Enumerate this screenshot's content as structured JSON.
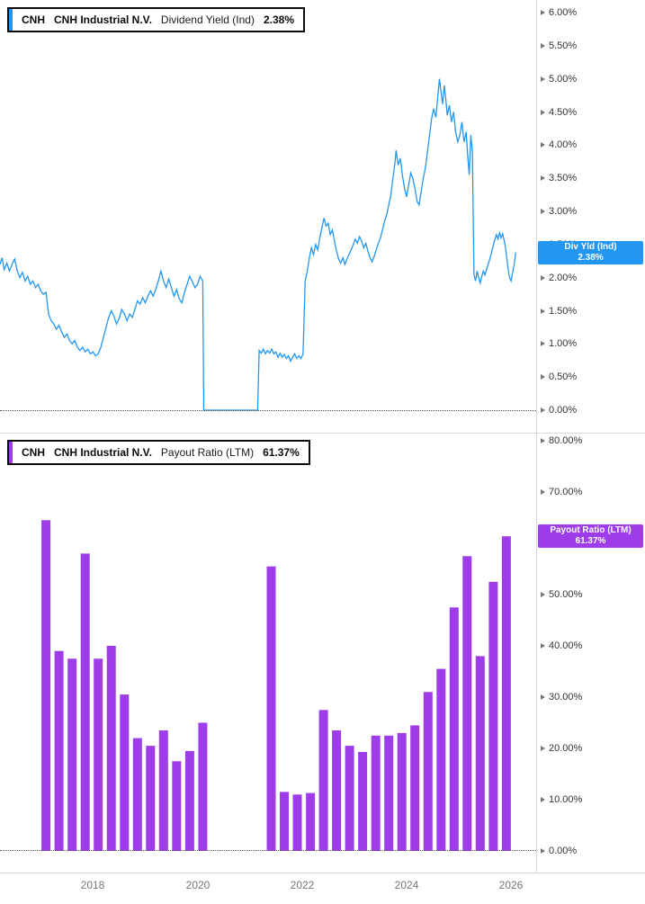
{
  "header_top": {
    "ticker": "CNH",
    "company": "CNH Industrial N.V.",
    "metric": "Dividend Yield (Ind)",
    "value": "2.38%",
    "accent": "#2196f3"
  },
  "header_bottom": {
    "ticker": "CNH",
    "company": "CNH Industrial N.V.",
    "metric": "Payout Ratio (LTM)",
    "value": "61.37%",
    "accent": "#9d3ce8"
  },
  "badge_top": {
    "line1": "Div Yld (Ind)",
    "line2": "2.38%",
    "color": "#2196f3"
  },
  "badge_bottom": {
    "line1": "Payout Ratio (LTM)",
    "line2": "61.37%",
    "color": "#9d3ce8"
  },
  "chart_data": [
    {
      "type": "line",
      "title": "CNH Industrial N.V. Dividend Yield (Ind)",
      "xlabel": "",
      "ylabel": "",
      "ylim": [
        0,
        6
      ],
      "x_range": [
        2016.22,
        2026.48
      ],
      "x_ticks": [
        "2018",
        "2020",
        "2022",
        "2024",
        "2026"
      ],
      "x_tick_values": [
        2018,
        2020,
        2022,
        2024,
        2026
      ],
      "grid": false,
      "current_value": 2.38,
      "yticks": [
        {
          "v": 6,
          "label": "6.00%"
        },
        {
          "v": 5.5,
          "label": "5.50%"
        },
        {
          "v": 5,
          "label": "5.00%"
        },
        {
          "v": 4.5,
          "label": "4.50%"
        },
        {
          "v": 4,
          "label": "4.00%"
        },
        {
          "v": 3.5,
          "label": "3.50%"
        },
        {
          "v": 3,
          "label": "3.00%"
        },
        {
          "v": 2.5,
          "label": "2.50%"
        },
        {
          "v": 2,
          "label": "2.00%"
        },
        {
          "v": 1.5,
          "label": "1.50%"
        },
        {
          "v": 1,
          "label": "1.00%"
        },
        {
          "v": 0.5,
          "label": "0.50%"
        },
        {
          "v": 0,
          "label": "0.00%"
        }
      ],
      "series": [
        {
          "name": "Div Yld (Ind)",
          "color": "#2196f3",
          "points": [
            [
              2016.22,
              2.2
            ],
            [
              2016.26,
              2.3
            ],
            [
              2016.3,
              2.12
            ],
            [
              2016.35,
              2.22
            ],
            [
              2016.4,
              2.1
            ],
            [
              2016.45,
              2.2
            ],
            [
              2016.5,
              2.28
            ],
            [
              2016.55,
              2.1
            ],
            [
              2016.6,
              2.0
            ],
            [
              2016.65,
              2.08
            ],
            [
              2016.7,
              1.95
            ],
            [
              2016.75,
              2.02
            ],
            [
              2016.8,
              1.9
            ],
            [
              2016.85,
              1.95
            ],
            [
              2016.9,
              1.85
            ],
            [
              2016.95,
              1.9
            ],
            [
              2017.0,
              1.8
            ],
            [
              2017.05,
              1.75
            ],
            [
              2017.1,
              1.78
            ],
            [
              2017.15,
              1.45
            ],
            [
              2017.2,
              1.35
            ],
            [
              2017.25,
              1.3
            ],
            [
              2017.3,
              1.22
            ],
            [
              2017.35,
              1.28
            ],
            [
              2017.4,
              1.18
            ],
            [
              2017.45,
              1.1
            ],
            [
              2017.5,
              1.15
            ],
            [
              2017.55,
              1.05
            ],
            [
              2017.6,
              1.0
            ],
            [
              2017.65,
              1.05
            ],
            [
              2017.7,
              0.95
            ],
            [
              2017.75,
              0.9
            ],
            [
              2017.8,
              0.95
            ],
            [
              2017.85,
              0.88
            ],
            [
              2017.9,
              0.92
            ],
            [
              2017.95,
              0.85
            ],
            [
              2018.0,
              0.88
            ],
            [
              2018.05,
              0.82
            ],
            [
              2018.1,
              0.85
            ],
            [
              2018.15,
              0.95
            ],
            [
              2018.2,
              1.1
            ],
            [
              2018.25,
              1.25
            ],
            [
              2018.3,
              1.4
            ],
            [
              2018.35,
              1.5
            ],
            [
              2018.4,
              1.42
            ],
            [
              2018.45,
              1.3
            ],
            [
              2018.5,
              1.38
            ],
            [
              2018.55,
              1.52
            ],
            [
              2018.6,
              1.45
            ],
            [
              2018.65,
              1.35
            ],
            [
              2018.7,
              1.45
            ],
            [
              2018.75,
              1.4
            ],
            [
              2018.8,
              1.52
            ],
            [
              2018.85,
              1.65
            ],
            [
              2018.9,
              1.6
            ],
            [
              2018.95,
              1.7
            ],
            [
              2019.0,
              1.62
            ],
            [
              2019.05,
              1.72
            ],
            [
              2019.1,
              1.8
            ],
            [
              2019.15,
              1.72
            ],
            [
              2019.2,
              1.82
            ],
            [
              2019.25,
              1.95
            ],
            [
              2019.3,
              2.1
            ],
            [
              2019.35,
              1.95
            ],
            [
              2019.4,
              1.85
            ],
            [
              2019.45,
              1.98
            ],
            [
              2019.5,
              1.85
            ],
            [
              2019.55,
              1.72
            ],
            [
              2019.6,
              1.82
            ],
            [
              2019.65,
              1.68
            ],
            [
              2019.7,
              1.62
            ],
            [
              2019.75,
              1.78
            ],
            [
              2019.8,
              1.9
            ],
            [
              2019.85,
              2.02
            ],
            [
              2019.9,
              1.94
            ],
            [
              2019.95,
              1.85
            ],
            [
              2020.0,
              1.9
            ],
            [
              2020.05,
              2.02
            ],
            [
              2020.1,
              1.95
            ],
            [
              2020.12,
              0.0
            ],
            [
              2021.15,
              0.0
            ],
            [
              2021.18,
              0.9
            ],
            [
              2021.22,
              0.86
            ],
            [
              2021.26,
              0.92
            ],
            [
              2021.3,
              0.85
            ],
            [
              2021.34,
              0.9
            ],
            [
              2021.38,
              0.86
            ],
            [
              2021.42,
              0.92
            ],
            [
              2021.46,
              0.85
            ],
            [
              2021.5,
              0.88
            ],
            [
              2021.54,
              0.8
            ],
            [
              2021.58,
              0.86
            ],
            [
              2021.62,
              0.8
            ],
            [
              2021.66,
              0.84
            ],
            [
              2021.7,
              0.78
            ],
            [
              2021.74,
              0.82
            ],
            [
              2021.78,
              0.74
            ],
            [
              2021.82,
              0.8
            ],
            [
              2021.86,
              0.85
            ],
            [
              2021.9,
              0.78
            ],
            [
              2021.94,
              0.82
            ],
            [
              2021.98,
              0.78
            ],
            [
              2022.02,
              0.85
            ],
            [
              2022.06,
              1.95
            ],
            [
              2022.1,
              2.1
            ],
            [
              2022.14,
              2.3
            ],
            [
              2022.18,
              2.45
            ],
            [
              2022.22,
              2.35
            ],
            [
              2022.26,
              2.5
            ],
            [
              2022.3,
              2.42
            ],
            [
              2022.34,
              2.6
            ],
            [
              2022.38,
              2.75
            ],
            [
              2022.42,
              2.9
            ],
            [
              2022.46,
              2.78
            ],
            [
              2022.5,
              2.82
            ],
            [
              2022.54,
              2.65
            ],
            [
              2022.58,
              2.72
            ],
            [
              2022.62,
              2.55
            ],
            [
              2022.66,
              2.4
            ],
            [
              2022.7,
              2.28
            ],
            [
              2022.74,
              2.22
            ],
            [
              2022.78,
              2.3
            ],
            [
              2022.82,
              2.2
            ],
            [
              2022.86,
              2.28
            ],
            [
              2022.9,
              2.35
            ],
            [
              2022.94,
              2.42
            ],
            [
              2022.98,
              2.5
            ],
            [
              2023.02,
              2.58
            ],
            [
              2023.06,
              2.52
            ],
            [
              2023.1,
              2.62
            ],
            [
              2023.14,
              2.55
            ],
            [
              2023.18,
              2.45
            ],
            [
              2023.22,
              2.52
            ],
            [
              2023.26,
              2.4
            ],
            [
              2023.3,
              2.3
            ],
            [
              2023.34,
              2.24
            ],
            [
              2023.38,
              2.32
            ],
            [
              2023.42,
              2.42
            ],
            [
              2023.46,
              2.52
            ],
            [
              2023.5,
              2.6
            ],
            [
              2023.54,
              2.72
            ],
            [
              2023.58,
              2.85
            ],
            [
              2023.62,
              2.95
            ],
            [
              2023.66,
              3.1
            ],
            [
              2023.7,
              3.25
            ],
            [
              2023.74,
              3.5
            ],
            [
              2023.78,
              3.75
            ],
            [
              2023.8,
              3.92
            ],
            [
              2023.84,
              3.7
            ],
            [
              2023.88,
              3.8
            ],
            [
              2023.92,
              3.55
            ],
            [
              2023.96,
              3.35
            ],
            [
              2024.0,
              3.22
            ],
            [
              2024.04,
              3.4
            ],
            [
              2024.08,
              3.58
            ],
            [
              2024.12,
              3.5
            ],
            [
              2024.16,
              3.35
            ],
            [
              2024.2,
              3.15
            ],
            [
              2024.24,
              3.1
            ],
            [
              2024.28,
              3.3
            ],
            [
              2024.32,
              3.5
            ],
            [
              2024.36,
              3.65
            ],
            [
              2024.4,
              3.9
            ],
            [
              2024.44,
              4.15
            ],
            [
              2024.48,
              4.4
            ],
            [
              2024.52,
              4.55
            ],
            [
              2024.56,
              4.42
            ],
            [
              2024.6,
              4.75
            ],
            [
              2024.63,
              5.0
            ],
            [
              2024.66,
              4.8
            ],
            [
              2024.69,
              4.62
            ],
            [
              2024.72,
              4.9
            ],
            [
              2024.75,
              4.7
            ],
            [
              2024.78,
              4.45
            ],
            [
              2024.82,
              4.6
            ],
            [
              2024.86,
              4.35
            ],
            [
              2024.9,
              4.5
            ],
            [
              2024.94,
              4.2
            ],
            [
              2024.98,
              4.05
            ],
            [
              2025.02,
              4.15
            ],
            [
              2025.06,
              4.35
            ],
            [
              2025.1,
              4.05
            ],
            [
              2025.14,
              4.2
            ],
            [
              2025.17,
              3.85
            ],
            [
              2025.2,
              3.55
            ],
            [
              2025.23,
              4.15
            ],
            [
              2025.26,
              3.9
            ],
            [
              2025.29,
              2.05
            ],
            [
              2025.32,
              1.95
            ],
            [
              2025.35,
              2.1
            ],
            [
              2025.38,
              2.0
            ],
            [
              2025.41,
              1.92
            ],
            [
              2025.44,
              2.02
            ],
            [
              2025.47,
              2.1
            ],
            [
              2025.5,
              2.04
            ],
            [
              2025.53,
              2.12
            ],
            [
              2025.56,
              2.2
            ],
            [
              2025.6,
              2.3
            ],
            [
              2025.64,
              2.42
            ],
            [
              2025.68,
              2.55
            ],
            [
              2025.72,
              2.65
            ],
            [
              2025.75,
              2.58
            ],
            [
              2025.78,
              2.68
            ],
            [
              2025.81,
              2.6
            ],
            [
              2025.84,
              2.66
            ],
            [
              2025.88,
              2.52
            ],
            [
              2025.91,
              2.35
            ],
            [
              2025.94,
              2.15
            ],
            [
              2025.97,
              2.0
            ],
            [
              2026.0,
              1.95
            ],
            [
              2026.03,
              2.08
            ],
            [
              2026.06,
              2.2
            ],
            [
              2026.09,
              2.38
            ]
          ]
        }
      ]
    },
    {
      "type": "bar",
      "title": "CNH Industrial N.V. Payout Ratio (LTM)",
      "xlabel": "",
      "ylabel": "",
      "ylim": [
        0,
        80
      ],
      "grid": false,
      "color": "#9d3ce8",
      "current_value": 61.37,
      "yticks": [
        {
          "v": 80,
          "label": "80.00%"
        },
        {
          "v": 70,
          "label": "70.00%"
        },
        {
          "v": 60,
          "label": "60.00%"
        },
        {
          "v": 50,
          "label": "50.00%"
        },
        {
          "v": 40,
          "label": "40.00%"
        },
        {
          "v": 30,
          "label": "30.00%"
        },
        {
          "v": 20,
          "label": "20.00%"
        },
        {
          "v": 10,
          "label": "10.00%"
        },
        {
          "v": 0,
          "label": "0.00%"
        }
      ],
      "bars": [
        [
          2017.1,
          64.5
        ],
        [
          2017.35,
          39.0
        ],
        [
          2017.6,
          37.5
        ],
        [
          2017.85,
          58.0
        ],
        [
          2018.1,
          37.5
        ],
        [
          2018.35,
          40.0
        ],
        [
          2018.6,
          30.5
        ],
        [
          2018.85,
          22.0
        ],
        [
          2019.1,
          20.5
        ],
        [
          2019.35,
          23.5
        ],
        [
          2019.6,
          17.5
        ],
        [
          2019.85,
          19.5
        ],
        [
          2020.1,
          25.0
        ],
        [
          2021.41,
          55.5
        ],
        [
          2021.66,
          11.5
        ],
        [
          2021.91,
          11.0
        ],
        [
          2022.16,
          11.3
        ],
        [
          2022.41,
          27.5
        ],
        [
          2022.66,
          23.5
        ],
        [
          2022.91,
          20.5
        ],
        [
          2023.16,
          19.3
        ],
        [
          2023.41,
          22.5
        ],
        [
          2023.66,
          22.5
        ],
        [
          2023.91,
          23.0
        ],
        [
          2024.16,
          24.5
        ],
        [
          2024.41,
          31.0
        ],
        [
          2024.66,
          35.5
        ],
        [
          2024.91,
          47.5
        ],
        [
          2025.16,
          57.5
        ],
        [
          2025.41,
          38.0
        ],
        [
          2025.66,
          52.5
        ],
        [
          2025.91,
          61.37
        ]
      ]
    }
  ]
}
